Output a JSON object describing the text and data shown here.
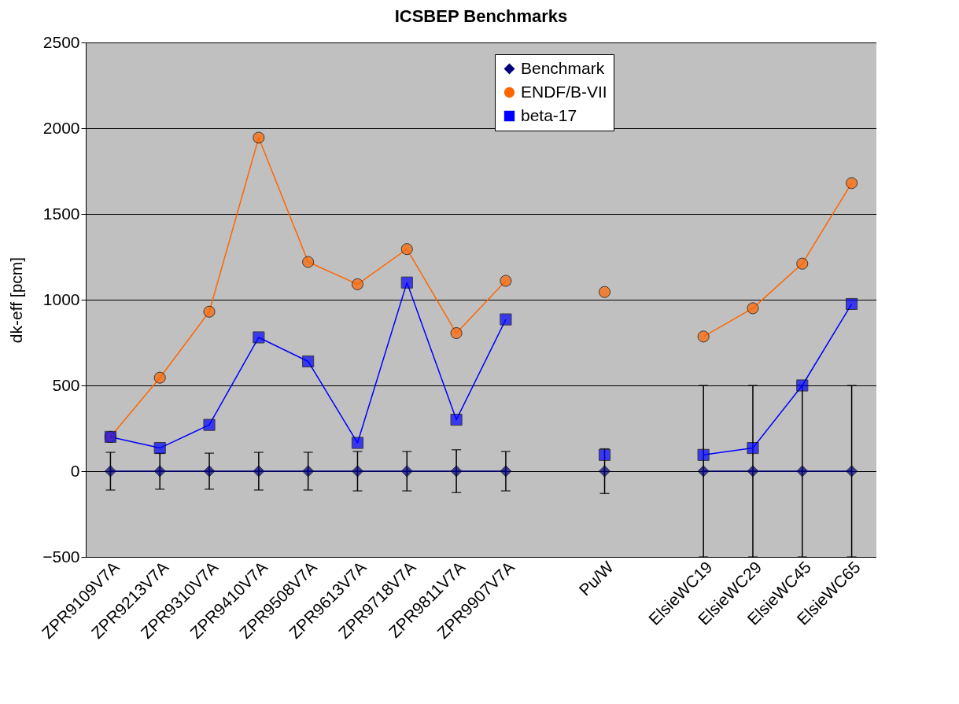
{
  "chart_data": {
    "type": "line",
    "title": "ICSBEP Benchmarks",
    "ylabel": "dk-eff [pcm]",
    "categories": [
      "ZPR9109V7A",
      "ZPR9213V7A",
      "ZPR9310V7A",
      "ZPR9410V7A",
      "ZPR9508V7A",
      "ZPR9613V7A",
      "ZPR9718V7A",
      "ZPR9811V7A",
      "ZPR9907V7A",
      null,
      "Pu/W",
      null,
      "ElsieWC19",
      "ElsieWC29",
      "ElsieWC45",
      "ElsieWC65"
    ],
    "series": [
      {
        "name": "Benchmark",
        "color": "#000080",
        "marker": "diamond",
        "values": [
          0,
          0,
          0,
          0,
          0,
          0,
          0,
          0,
          0,
          null,
          0,
          null,
          0,
          0,
          0,
          0
        ],
        "errors": [
          110,
          105,
          105,
          110,
          110,
          115,
          115,
          125,
          115,
          null,
          130,
          null,
          500,
          500,
          500,
          500
        ]
      },
      {
        "name": "ENDF/B-VII",
        "color": "#ff6600",
        "marker": "circle",
        "values": [
          200,
          545,
          930,
          1945,
          1220,
          1090,
          1295,
          805,
          1110,
          null,
          1045,
          null,
          785,
          950,
          1210,
          1680
        ]
      },
      {
        "name": "beta-17",
        "color": "#0000ff",
        "marker": "square",
        "values": [
          200,
          135,
          270,
          780,
          640,
          165,
          1100,
          300,
          885,
          null,
          95,
          null,
          95,
          135,
          500,
          975
        ]
      }
    ],
    "ylim": [
      -500,
      2500
    ],
    "yticks": [
      -500,
      0,
      500,
      1000,
      1500,
      2000,
      2500
    ],
    "grid": "y",
    "legend": "top right",
    "line_style": "solid"
  }
}
